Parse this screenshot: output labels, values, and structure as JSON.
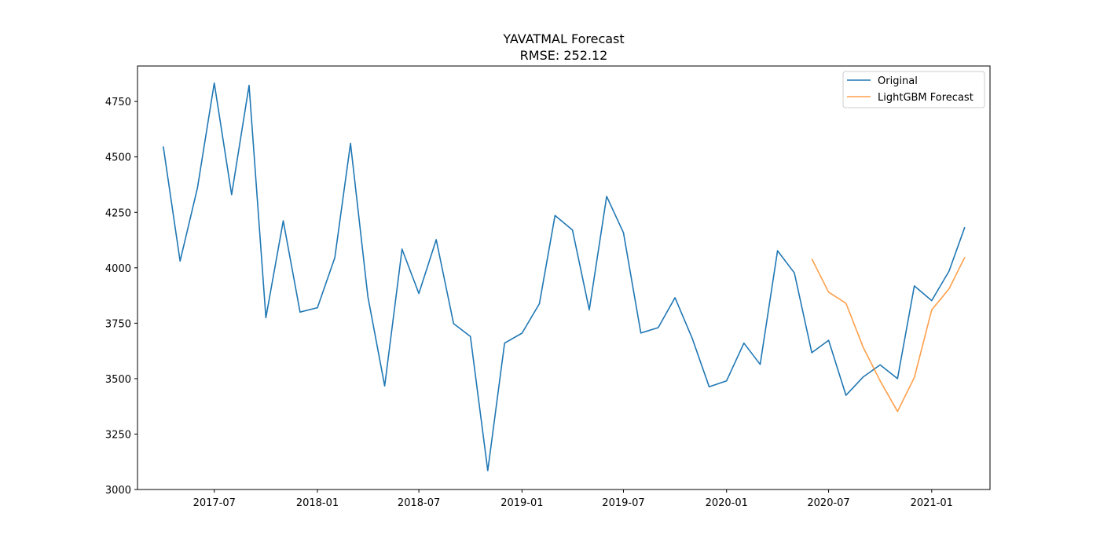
{
  "chart_data": {
    "type": "line",
    "title": "YAVATMAL Forecast",
    "subtitle": "RMSE: 252.12",
    "xlabel": "",
    "ylabel": "",
    "ylim": [
      3000,
      4910
    ],
    "xlim": [
      "2017-02-14",
      "2021-04-15"
    ],
    "grid": false,
    "legend_position": "top-right",
    "x_ticks": [
      "2017-07",
      "2018-01",
      "2018-07",
      "2019-01",
      "2019-07",
      "2020-01",
      "2020-07",
      "2021-01"
    ],
    "y_ticks": [
      3000,
      3250,
      3500,
      3750,
      4000,
      4250,
      4500,
      4750
    ],
    "series": [
      {
        "name": "Original",
        "color": "#1f77b4",
        "x": [
          "2017-04",
          "2017-05",
          "2017-06",
          "2017-07",
          "2017-08",
          "2017-09",
          "2017-10",
          "2017-11",
          "2017-12",
          "2018-01",
          "2018-02",
          "2018-03",
          "2018-04",
          "2018-05",
          "2018-06",
          "2018-07",
          "2018-08",
          "2018-09",
          "2018-10",
          "2018-11",
          "2018-12",
          "2019-01",
          "2019-02",
          "2019-03",
          "2019-04",
          "2019-05",
          "2019-06",
          "2019-07",
          "2019-08",
          "2019-09",
          "2019-10",
          "2019-11",
          "2019-12",
          "2020-01",
          "2020-02",
          "2020-03",
          "2020-04",
          "2020-05",
          "2020-06",
          "2020-07",
          "2020-08",
          "2020-09",
          "2020-10",
          "2020-11",
          "2020-12",
          "2021-01",
          "2021-02",
          "2021-03"
        ],
        "values": [
          4547,
          4030,
          4360,
          4833,
          4330,
          4823,
          3775,
          4212,
          3800,
          3820,
          4045,
          4561,
          3870,
          3467,
          4084,
          3884,
          4127,
          3748,
          3690,
          3085,
          3660,
          3705,
          3838,
          4236,
          4170,
          3810,
          4322,
          4158,
          3706,
          3730,
          3865,
          3680,
          3463,
          3490,
          3660,
          3564,
          4077,
          3977,
          3617,
          3673,
          3425,
          3508,
          3562,
          3500,
          3918,
          3852,
          3985,
          4183
        ]
      },
      {
        "name": "LightGBM Forecast",
        "color": "#ff7f0e",
        "x": [
          "2020-06",
          "2020-07",
          "2020-08",
          "2020-09",
          "2020-10",
          "2020-11",
          "2020-12",
          "2021-01",
          "2021-02",
          "2021-03"
        ],
        "values": [
          4040,
          3890,
          3840,
          3640,
          3490,
          3352,
          3505,
          3810,
          3905,
          4048
        ]
      }
    ]
  }
}
